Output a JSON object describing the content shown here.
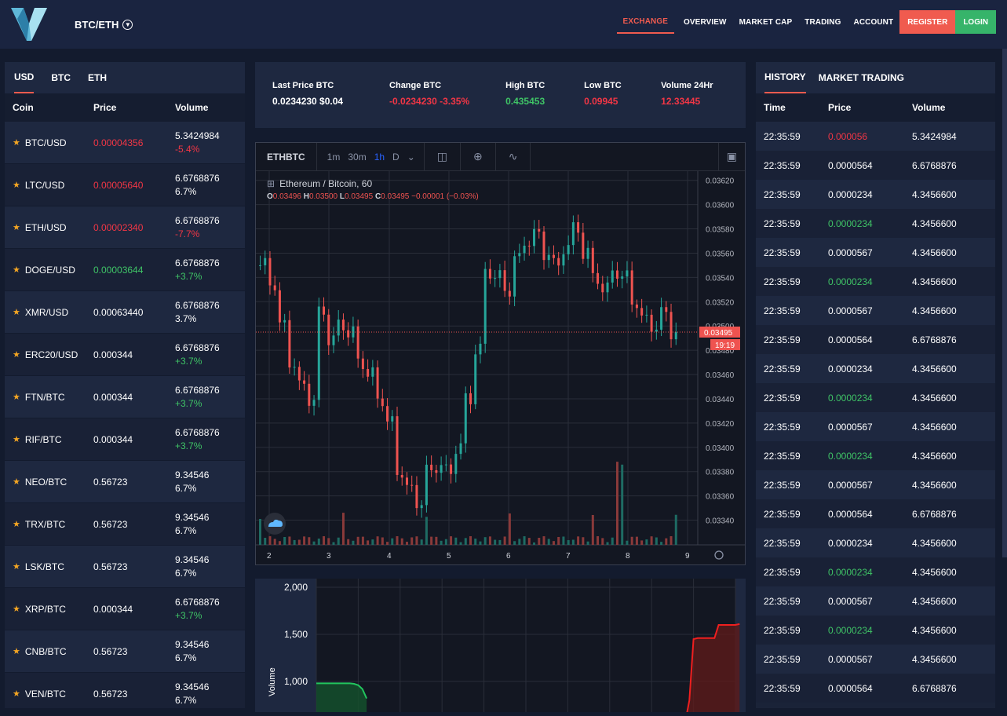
{
  "header": {
    "pair": "BTC/ETH",
    "nav": [
      "EXCHANGE",
      "OVERVIEW",
      "MARKET CAP",
      "TRADING",
      "ACCOUNT"
    ],
    "register": "REGISTER",
    "login": "LOGIN",
    "colors": {
      "register": "#f05b4f",
      "login": "#36b46a"
    }
  },
  "markets": {
    "tabs": [
      "USD",
      "BTC",
      "ETH"
    ],
    "columns": [
      "Coin",
      "Price",
      "Volume"
    ],
    "rows": [
      {
        "coin": "BTC/USD",
        "price": "0.00004356",
        "price_color": "red",
        "volume": "5.3424984",
        "change": "-5.4%",
        "change_color": "red"
      },
      {
        "coin": "LTC/USD",
        "price": "0.00005640",
        "price_color": "red",
        "volume": "6.6768876",
        "change": "6.7%",
        "change_color": "white"
      },
      {
        "coin": "ETH/USD",
        "price": "0.00002340",
        "price_color": "red",
        "volume": "6.6768876",
        "change": "-7.7%",
        "change_color": "red"
      },
      {
        "coin": "DOGE/USD",
        "price": "0.00003644",
        "price_color": "green",
        "volume": "6.6768876",
        "change": "+3.7%",
        "change_color": "green"
      },
      {
        "coin": "XMR/USD",
        "price": "0.00063440",
        "price_color": "white",
        "volume": "6.6768876",
        "change": "3.7%",
        "change_color": "white"
      },
      {
        "coin": "ERC20/USD",
        "price": "0.000344",
        "price_color": "white",
        "volume": "6.6768876",
        "change": "+3.7%",
        "change_color": "green"
      },
      {
        "coin": "FTN/BTC",
        "price": "0.000344",
        "price_color": "white",
        "volume": "6.6768876",
        "change": "+3.7%",
        "change_color": "green"
      },
      {
        "coin": "RIF/BTC",
        "price": "0.000344",
        "price_color": "white",
        "volume": "6.6768876",
        "change": "+3.7%",
        "change_color": "green"
      },
      {
        "coin": "NEO/BTC",
        "price": "0.56723",
        "price_color": "white",
        "volume": "9.34546",
        "change": "6.7%",
        "change_color": "white"
      },
      {
        "coin": "TRX/BTC",
        "price": "0.56723",
        "price_color": "white",
        "volume": "9.34546",
        "change": "6.7%",
        "change_color": "white"
      },
      {
        "coin": "LSK/BTC",
        "price": "0.56723",
        "price_color": "white",
        "volume": "9.34546",
        "change": "6.7%",
        "change_color": "white"
      },
      {
        "coin": "XRP/BTC",
        "price": "0.000344",
        "price_color": "white",
        "volume": "6.6768876",
        "change": "+3.7%",
        "change_color": "green"
      },
      {
        "coin": "CNB/BTC",
        "price": "0.56723",
        "price_color": "white",
        "volume": "9.34546",
        "change": "6.7%",
        "change_color": "white"
      },
      {
        "coin": "VEN/BTC",
        "price": "0.56723",
        "price_color": "white",
        "volume": "9.34546",
        "change": "6.7%",
        "change_color": "white"
      }
    ]
  },
  "stats": [
    {
      "label": "Last Price BTC",
      "value": "0.0234230 $0.04",
      "color": "white"
    },
    {
      "label": "Change BTC",
      "value": "-0.0234230 -3.35%",
      "color": "red"
    },
    {
      "label": "High BTC",
      "value": "0.435453",
      "color": "green"
    },
    {
      "label": "Low BTC",
      "value": "0.09945",
      "color": "red"
    },
    {
      "label": "Volume 24Hr",
      "value": "12.33445",
      "color": "red"
    }
  ],
  "chart": {
    "symbol": "ETHBTC",
    "timeframes": [
      "1m",
      "30m",
      "1h",
      "D"
    ],
    "active_timeframe": "1h",
    "title": "Ethereum / Bitcoin, 60",
    "ohlc": {
      "o_label": "O",
      "o": "0.03496",
      "h_label": "H",
      "h": "0.03500",
      "l_label": "L",
      "l": "0.03495",
      "c_label": "C",
      "c": "0.03495",
      "chg": "−0.00001 (−0.03%)"
    },
    "price_ticks": [
      "0.03620",
      "0.03600",
      "0.03580",
      "0.03560",
      "0.03540",
      "0.03520",
      "0.03500",
      "0.03480",
      "0.03460",
      "0.03440",
      "0.03420",
      "0.03400",
      "0.03380",
      "0.03360",
      "0.03340"
    ],
    "time_ticks": [
      "2",
      "3",
      "4",
      "5",
      "6",
      "7",
      "8",
      "9"
    ],
    "last_price": "0.03495",
    "countdown": "19:19"
  },
  "chart_data": {
    "type": "line",
    "ylabel": "Volume",
    "y_ticks": [
      "2,000",
      "1,500",
      "1,000"
    ],
    "ylim": [
      500,
      2000
    ],
    "series": [
      {
        "color": "#22c55e",
        "x": [
          0,
          0.08,
          0.09,
          0.1,
          0.11,
          0.12
        ],
        "values": [
          980,
          980,
          975,
          960,
          920,
          820
        ]
      },
      {
        "color": "#ef1f1f",
        "x": [
          0.86,
          0.88,
          0.89,
          0.9,
          0.91,
          0.92,
          0.95,
          0.96,
          1.0,
          1.01
        ],
        "values": [
          520,
          560,
          800,
          1450,
          1460,
          1460,
          1460,
          1600,
          1600,
          1610
        ]
      }
    ]
  },
  "history": {
    "tabs": [
      "HISTORY",
      "MARKET TRADING"
    ],
    "columns": [
      "Time",
      "Price",
      "Volume"
    ],
    "rows": [
      {
        "time": "22:35:59",
        "price": "0.000056",
        "price_color": "red",
        "volume": "5.3424984"
      },
      {
        "time": "22:35:59",
        "price": "0.0000564",
        "price_color": "white",
        "volume": "6.6768876"
      },
      {
        "time": "22:35:59",
        "price": "0.0000234",
        "price_color": "white",
        "volume": "4.3456600"
      },
      {
        "time": "22:35:59",
        "price": "0.0000234",
        "price_color": "green",
        "volume": "4.3456600"
      },
      {
        "time": "22:35:59",
        "price": "0.0000567",
        "price_color": "white",
        "volume": "4.3456600"
      },
      {
        "time": "22:35:59",
        "price": "0.0000234",
        "price_color": "green",
        "volume": "4.3456600"
      },
      {
        "time": "22:35:59",
        "price": "0.0000567",
        "price_color": "white",
        "volume": "4.3456600"
      },
      {
        "time": "22:35:59",
        "price": "0.0000564",
        "price_color": "white",
        "volume": "6.6768876"
      },
      {
        "time": "22:35:59",
        "price": "0.0000234",
        "price_color": "white",
        "volume": "4.3456600"
      },
      {
        "time": "22:35:59",
        "price": "0.0000234",
        "price_color": "green",
        "volume": "4.3456600"
      },
      {
        "time": "22:35:59",
        "price": "0.0000567",
        "price_color": "white",
        "volume": "4.3456600"
      },
      {
        "time": "22:35:59",
        "price": "0.0000234",
        "price_color": "green",
        "volume": "4.3456600"
      },
      {
        "time": "22:35:59",
        "price": "0.0000567",
        "price_color": "white",
        "volume": "4.3456600"
      },
      {
        "time": "22:35:59",
        "price": "0.0000564",
        "price_color": "white",
        "volume": "6.6768876"
      },
      {
        "time": "22:35:59",
        "price": "0.0000234",
        "price_color": "white",
        "volume": "4.3456600"
      },
      {
        "time": "22:35:59",
        "price": "0.0000234",
        "price_color": "green",
        "volume": "4.3456600"
      },
      {
        "time": "22:35:59",
        "price": "0.0000567",
        "price_color": "white",
        "volume": "4.3456600"
      },
      {
        "time": "22:35:59",
        "price": "0.0000234",
        "price_color": "green",
        "volume": "4.3456600"
      },
      {
        "time": "22:35:59",
        "price": "0.0000567",
        "price_color": "white",
        "volume": "4.3456600"
      },
      {
        "time": "22:35:59",
        "price": "0.0000564",
        "price_color": "white",
        "volume": "6.6768876"
      }
    ]
  }
}
